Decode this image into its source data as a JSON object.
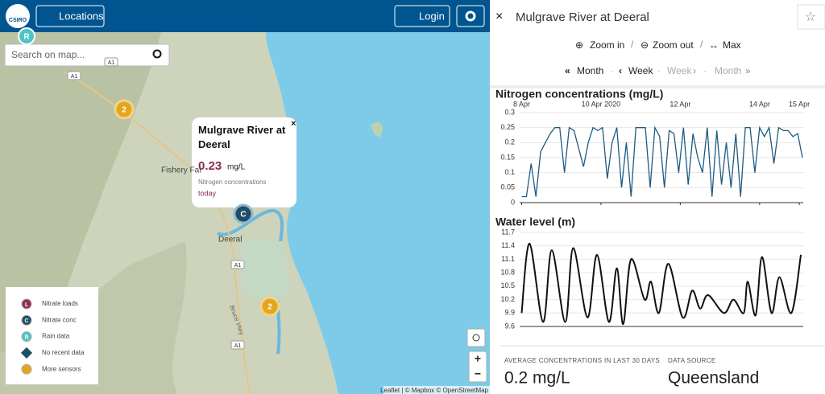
{
  "header": {
    "logo": "CSIRO",
    "locations_button": "Locations",
    "login_button": "Login"
  },
  "map": {
    "search_placeholder": "Search on map...",
    "popup": {
      "title": "Mulgrave River at Deeral",
      "value": 0.23,
      "unit": "mg/L",
      "label": "Nitrogen concentrations",
      "time": "today"
    },
    "places": [
      "Fishery Fal",
      "Deeral",
      "Bruce Hwy"
    ],
    "road_badges": [
      "A1",
      "A1",
      "A1",
      "A1"
    ],
    "clusters": [
      2,
      2
    ],
    "markers": [
      "R",
      "C"
    ],
    "legend": [
      {
        "letter": "L",
        "label": "Nitrate loads"
      },
      {
        "letter": "C",
        "label": "Nitrate conc"
      },
      {
        "letter": "R",
        "label": "Rain data"
      },
      {
        "letter": "",
        "label": "No recent data"
      },
      {
        "letter": "",
        "label": "More sensors"
      }
    ],
    "zoom_in": "+",
    "zoom_out": "−",
    "attribution": "Leaflet | © Mapbox © OpenStreetMap"
  },
  "panel": {
    "close": "×",
    "star": "☆",
    "title": "Mulgrave River at Deeral",
    "zoom": [
      {
        "icon": "⊕",
        "label": "Zoom in"
      },
      {
        "icon": "⊖",
        "label": "Zoom out"
      },
      {
        "icon": "↔",
        "label": "Max"
      }
    ],
    "zoom_separator": "/",
    "nav": [
      {
        "icon": "«",
        "label": "Month"
      },
      {
        "icon": "‹",
        "label": "Week"
      },
      {
        "icon": "›",
        "label": "Week"
      },
      {
        "icon": "»",
        "label": "Month"
      }
    ],
    "nav_separator": "·",
    "stats": [
      {
        "label": "AVERAGE CONCENTRATIONS IN LAST 30 DAYS",
        "value": "0.2 mg/L"
      },
      {
        "label": "DATA SOURCE",
        "value": "Queensland"
      }
    ]
  },
  "chart_data": [
    {
      "type": "line",
      "title": "Nitrogen concentrations (mg/L)",
      "color": "#1f5a80",
      "grid": true,
      "x": [
        8,
        8.12,
        8.24,
        8.36,
        8.48,
        8.6,
        8.72,
        8.84,
        8.96,
        9.08,
        9.2,
        9.32,
        9.44,
        9.56,
        9.68,
        9.8,
        9.92,
        10.04,
        10.16,
        10.28,
        10.4,
        10.52,
        10.64,
        10.76,
        10.88,
        11,
        11.12,
        11.24,
        11.36,
        11.48,
        11.6,
        11.72,
        11.84,
        11.96,
        12.08,
        12.2,
        12.32,
        12.44,
        12.56,
        12.68,
        12.8,
        12.92,
        13.04,
        13.16,
        13.28,
        13.4,
        13.52,
        13.64,
        13.76,
        13.88,
        14,
        14.12,
        14.24,
        14.36,
        14.48,
        14.6,
        14.72,
        14.84,
        14.96,
        15.08
      ],
      "values": [
        0.02,
        0.02,
        0.13,
        0.02,
        0.17,
        0.2,
        0.23,
        0.25,
        0.25,
        0.1,
        0.25,
        0.24,
        0.18,
        0.12,
        0.2,
        0.25,
        0.24,
        0.25,
        0.08,
        0.2,
        0.25,
        0.05,
        0.2,
        0.02,
        0.25,
        0.25,
        0.25,
        0.05,
        0.25,
        0.22,
        0.05,
        0.24,
        0.23,
        0.1,
        0.25,
        0.06,
        0.23,
        0.15,
        0.1,
        0.25,
        0.02,
        0.24,
        0.06,
        0.2,
        0.05,
        0.23,
        0.02,
        0.25,
        0.25,
        0.1,
        0.25,
        0.22,
        0.25,
        0.13,
        0.25,
        0.24,
        0.24,
        0.22,
        0.23,
        0.15
      ],
      "xlim": [
        7.95,
        15.1
      ],
      "xticks": [
        {
          "value": 8,
          "label": "8 Apr"
        },
        {
          "value": 10,
          "label": "10 Apr 2020"
        },
        {
          "value": 12,
          "label": "12 Apr"
        },
        {
          "value": 14,
          "label": "14 Apr"
        },
        {
          "value": 15,
          "label": "15 Apr"
        }
      ],
      "ylim": [
        0,
        0.3
      ],
      "yticks": [
        0,
        0.05,
        0.1,
        0.15,
        0.2,
        0.25,
        0.3
      ]
    },
    {
      "type": "line",
      "title": "Water level (m)",
      "color": "#111111",
      "grid": true,
      "x": [
        8,
        8.2,
        8.54,
        8.76,
        9.1,
        9.3,
        9.66,
        9.9,
        10.2,
        10.4,
        10.56,
        10.76,
        11.1,
        11.26,
        11.46,
        11.7,
        12.06,
        12.3,
        12.5,
        12.7,
        13.1,
        13.34,
        13.6,
        13.7,
        13.9,
        14.06,
        14.3,
        14.5,
        14.8,
        15.04
      ],
      "values": [
        9.9,
        11.45,
        9.7,
        11.3,
        9.7,
        11.35,
        9.8,
        11.2,
        9.7,
        10.9,
        9.65,
        11.1,
        10.2,
        10.6,
        9.9,
        11,
        9.8,
        10.4,
        10,
        10.3,
        9.9,
        10.2,
        9.9,
        10.6,
        9.85,
        11.15,
        9.9,
        10.7,
        9.9,
        11.2
      ],
      "xlim": [
        7.95,
        15.1
      ],
      "ylim": [
        9.6,
        11.7
      ],
      "yticks": [
        9.6,
        9.9,
        10.2,
        10.5,
        10.8,
        11.1,
        11.4,
        11.7
      ]
    }
  ]
}
